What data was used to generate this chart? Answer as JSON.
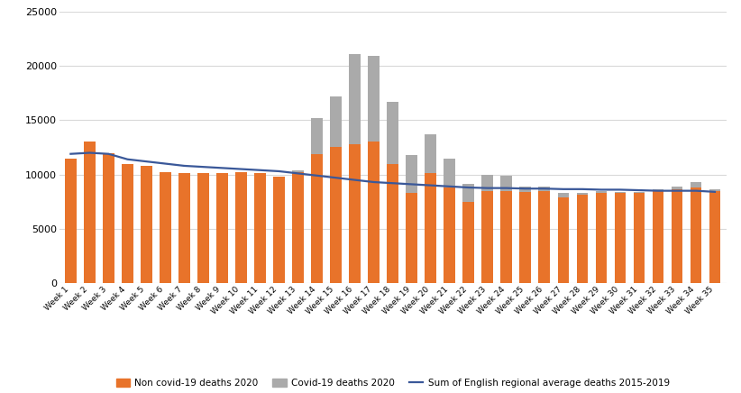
{
  "weeks": [
    "Week 1",
    "Week 2",
    "Week 3",
    "Week 4",
    "Week 5",
    "Week 6",
    "Week 7",
    "Week 8",
    "Week 9",
    "Week 10",
    "Week 11",
    "Week 12",
    "Week 13",
    "Week 14",
    "Week 15",
    "Week 16",
    "Week 17",
    "Week 18",
    "Week 19",
    "Week 20",
    "Week 21",
    "Week 22",
    "Week 23",
    "Week 24",
    "Week 25",
    "Week 26",
    "Week 27",
    "Week 28",
    "Week 29",
    "Week 30",
    "Week 31",
    "Week 32",
    "Week 33",
    "Week 34",
    "Week 35"
  ],
  "non_covid": [
    11500,
    13000,
    12000,
    11000,
    10800,
    10200,
    10100,
    10100,
    10100,
    10200,
    10100,
    9800,
    10200,
    11900,
    12500,
    12800,
    13000,
    11000,
    8300,
    10100,
    8800,
    7500,
    8500,
    8500,
    8400,
    8500,
    7900,
    8100,
    8300,
    8300,
    8300,
    8500,
    8600,
    8800,
    8500
  ],
  "covid": [
    0,
    0,
    0,
    0,
    0,
    0,
    0,
    0,
    0,
    0,
    0,
    0,
    200,
    3300,
    4700,
    8300,
    7900,
    5700,
    3500,
    3600,
    2700,
    1600,
    1500,
    1400,
    500,
    400,
    400,
    200,
    200,
    100,
    100,
    100,
    300,
    500,
    100
  ],
  "avg_line": [
    11900,
    12000,
    11900,
    11400,
    11200,
    11000,
    10800,
    10700,
    10600,
    10500,
    10400,
    10300,
    10100,
    9900,
    9700,
    9500,
    9300,
    9200,
    9100,
    9000,
    8900,
    8800,
    8750,
    8750,
    8700,
    8700,
    8650,
    8650,
    8600,
    8600,
    8550,
    8500,
    8500,
    8500,
    8400
  ],
  "bar_color_orange": "#E8732A",
  "bar_color_gray": "#AAAAAA",
  "line_color": "#3A5899",
  "bg_color": "#FFFFFF",
  "ylim": [
    0,
    25000
  ],
  "yticks": [
    0,
    5000,
    10000,
    15000,
    20000,
    25000
  ],
  "ytick_labels": [
    "0",
    "5000",
    "10000",
    "15000",
    "20000",
    "25000"
  ],
  "legend_labels": [
    "Non covid-19 deaths 2020",
    "Covid-19 deaths 2020",
    "Sum of English regional average deaths 2015-2019"
  ],
  "grid_color": "#D9D9D9"
}
